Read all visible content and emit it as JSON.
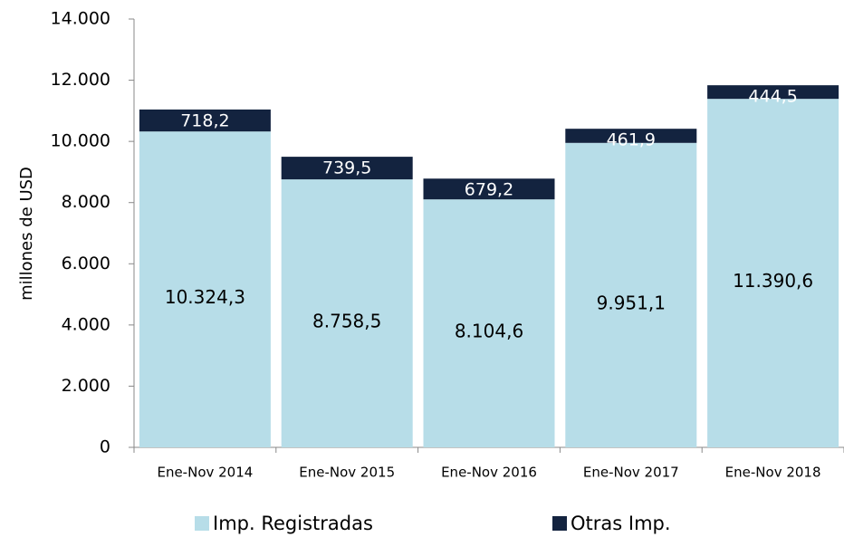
{
  "chart_data": {
    "type": "stacked_bar",
    "y_label": "millones de  USD",
    "categories": [
      "Ene-Nov 2014",
      "Ene-Nov 2015",
      "Ene-Nov 2016",
      "Ene-Nov 2017",
      "Ene-Nov 2018"
    ],
    "series": [
      {
        "name": "Imp. Registradas",
        "color": "#b7dde8",
        "values": [
          10324.3,
          8758.5,
          8104.6,
          9951.1,
          11390.6
        ],
        "value_labels": [
          "10.324,3",
          "8.758,5",
          "8.104,6",
          "9.951,1",
          "11.390,6"
        ]
      },
      {
        "name": "Otras Imp.",
        "color": "#13233f",
        "values": [
          718.2,
          739.5,
          679.2,
          461.9,
          444.5
        ],
        "value_labels": [
          "718,2",
          "739,5",
          "679,2",
          "461,9",
          "444,5"
        ]
      }
    ],
    "ylim": [
      0,
      14000
    ],
    "yticks": [
      0,
      {
        "value": 2000,
        "label": "2.000"
      },
      {
        "value": 4000,
        "label": "4.000"
      },
      {
        "value": 6000,
        "label": "6.000"
      },
      {
        "value": 8000,
        "label": "8.000"
      },
      {
        "value": 10000,
        "label": "10.000"
      },
      {
        "value": 12000,
        "label": "12.000"
      },
      {
        "value": 14000,
        "label": "14.000"
      }
    ],
    "legend": "bottom"
  }
}
